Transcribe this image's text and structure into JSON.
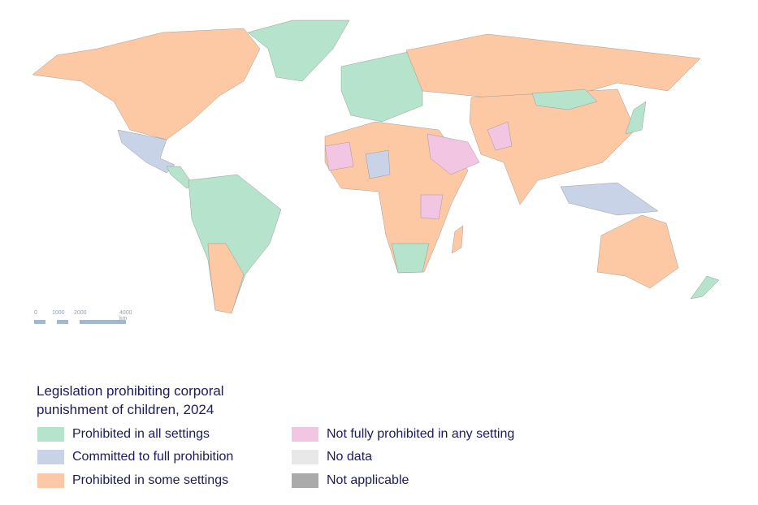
{
  "legend": {
    "title": "Legislation prohibiting corporal punishment of children, 2024",
    "items": [
      {
        "label": "Prohibited in all settings",
        "color": "#b5e3cc"
      },
      {
        "label": "Committed to full prohibition",
        "color": "#c8d3e8"
      },
      {
        "label": "Prohibited in some settings",
        "color": "#fdc9a4"
      },
      {
        "label": "Not fully prohibited in any setting",
        "color": "#f2c6e2"
      },
      {
        "label": "No data",
        "color": "#e8e8e8"
      },
      {
        "label": "Not applicable",
        "color": "#aaaaaa"
      }
    ]
  },
  "scale_bar": {
    "labels": [
      "0",
      "1000",
      "2000",
      "4000 km"
    ],
    "bar_color": "#a3b8cf"
  }
}
